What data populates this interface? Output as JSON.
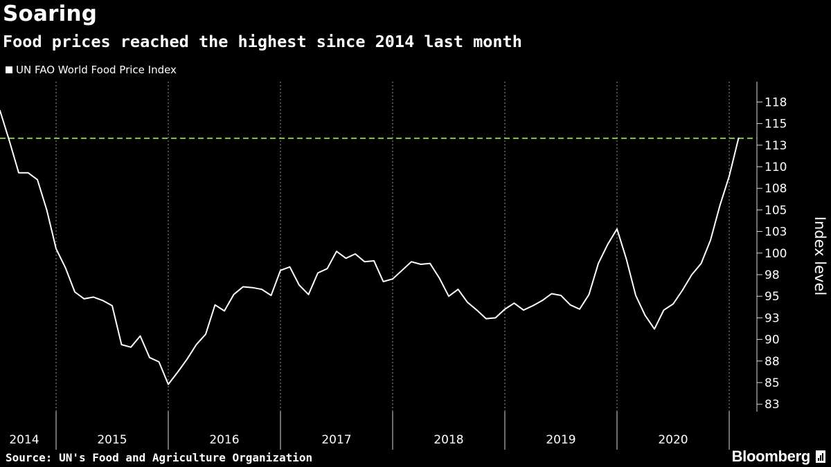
{
  "header": {
    "title": "Soaring",
    "subtitle": "Food prices reached the highest since 2014 last month"
  },
  "legend": {
    "label": "UN FAO World Food Price Index"
  },
  "footer": {
    "source": "Source: UN's Food and Agriculture Organization",
    "brand": "Bloomberg"
  },
  "colors": {
    "background": "#000000",
    "line": "#ffffff",
    "reference_line": "#8dc63f",
    "grid": "#9a9a9a"
  },
  "chart_data": {
    "type": "line",
    "ylabel": "Index level",
    "ylim": [
      82,
      120
    ],
    "y_ticks": [
      "118",
      "115",
      "113",
      "110",
      "108",
      "105",
      "103",
      "100",
      "98",
      "95",
      "93",
      "90",
      "88",
      "85",
      "83"
    ],
    "y_tick_values": [
      117.5,
      115,
      112.5,
      110,
      107.5,
      105,
      102.5,
      100,
      97.5,
      95,
      92.5,
      90,
      87.5,
      85,
      82.5
    ],
    "x_labels": [
      "2014",
      "2015",
      "2016",
      "2017",
      "2018",
      "2019",
      "2020"
    ],
    "x_start": "2014-07",
    "grid": true,
    "reference_line": {
      "value": 113.3,
      "style": "dashed"
    },
    "series": [
      {
        "values": [
          116.5,
          113,
          109.3,
          109.3,
          108.5,
          105,
          100.5,
          98.3,
          95.5,
          94.7,
          94.9,
          94.5,
          93.9,
          89.4,
          89.1,
          90.4,
          87.9,
          87.4,
          84.8,
          86.2,
          87.7,
          89.4,
          90.6,
          94.0,
          93.3,
          95.2,
          96.1,
          96.0,
          95.8,
          95.1,
          98.0,
          98.4,
          96.3,
          95.2,
          97.7,
          98.2,
          100.2,
          99.4,
          99.9,
          99.0,
          99.1,
          96.7,
          97.0,
          98.0,
          99.0,
          98.7,
          98.8,
          97.1,
          95.0,
          95.8,
          94.3,
          93.4,
          92.4,
          92.5,
          93.5,
          94.2,
          93.4,
          93.9,
          94.5,
          95.3,
          95.1,
          94.0,
          93.5,
          95.2,
          98.8,
          101.0,
          102.8,
          99.3,
          95.1,
          92.8,
          91.2,
          93.4,
          94.1,
          95.7,
          97.5,
          98.8,
          101.5,
          105.5,
          108.9,
          113.3
        ]
      }
    ]
  }
}
